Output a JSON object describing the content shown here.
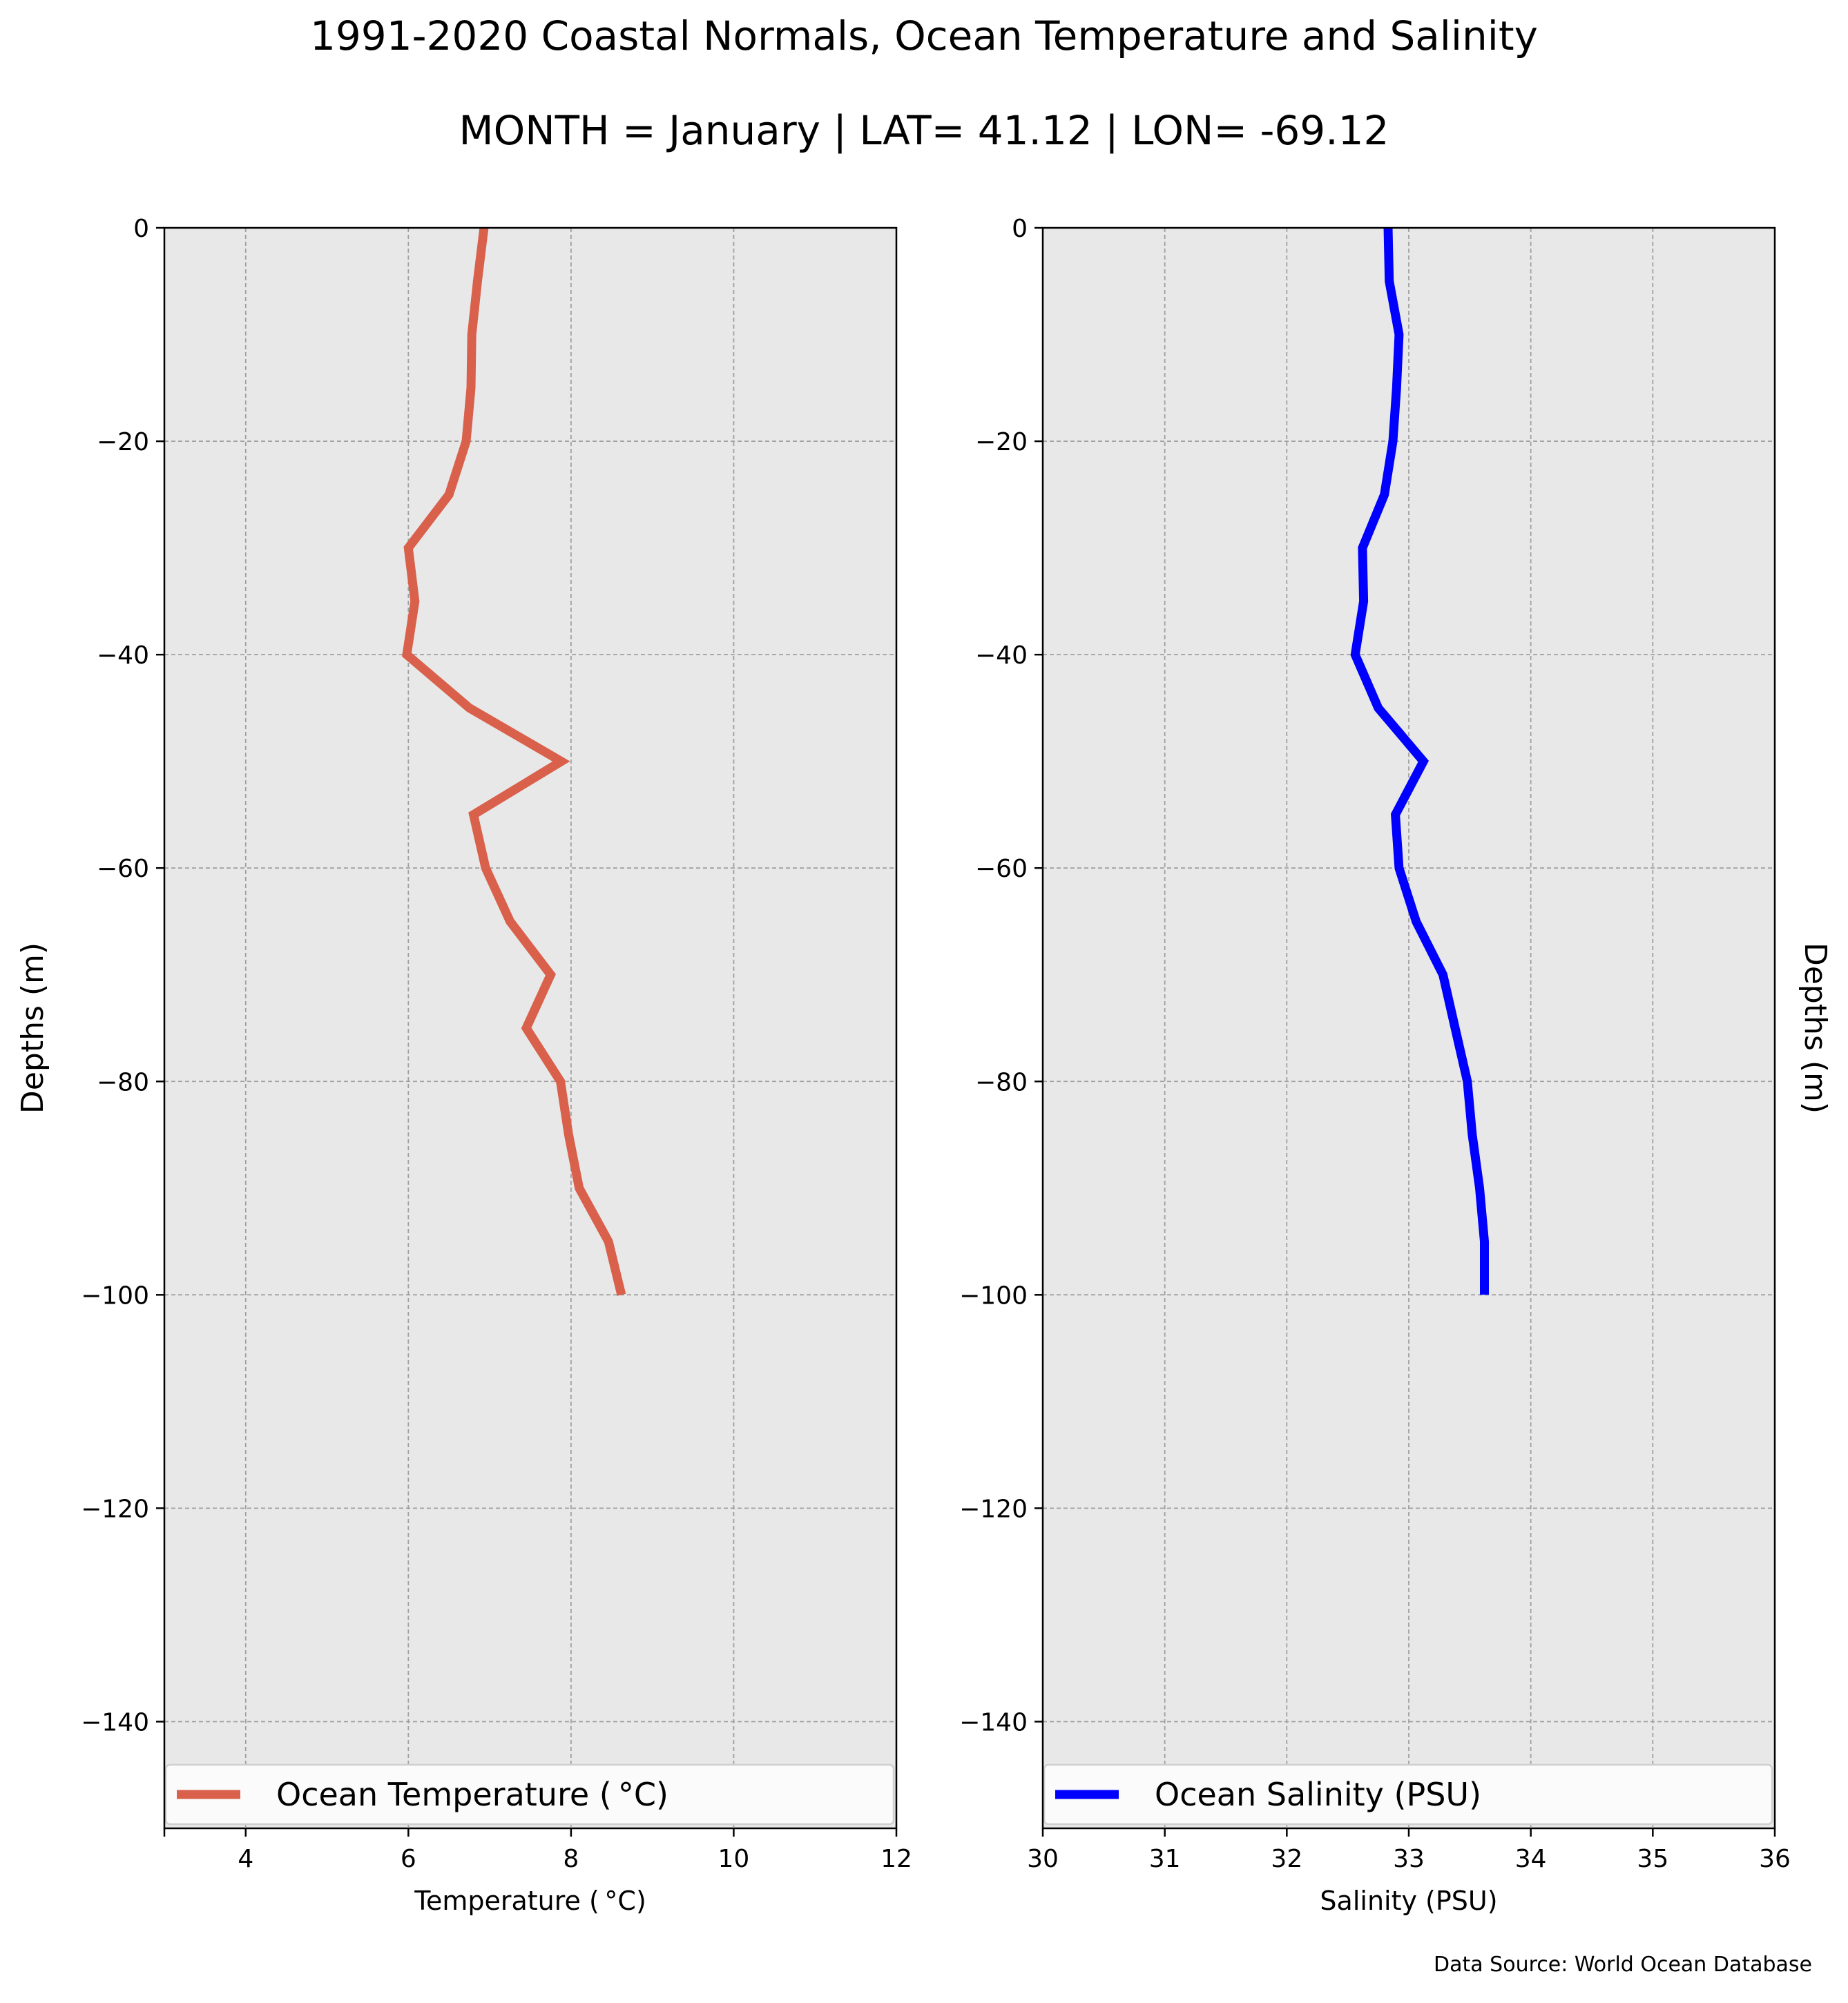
{
  "title": "1991-2020 Coastal Normals, Ocean Temperature and Salinity",
  "subtitle": "MONTH = January | LAT= 41.12 | LON= -69.12",
  "source_note": "Data Source: World Ocean Database",
  "colors": {
    "temperature_line": "#d9604b",
    "salinity_line": "#0000ff",
    "plot_background": "#e8e8e8",
    "grid": "#a0a0a0"
  },
  "chart_data": [
    {
      "type": "line",
      "orientation": "profile",
      "xlabel": "Temperature ($^\\circ$C)",
      "xlabel_display": "Temperature ( °C)",
      "ylabel": "Depths (m)",
      "xlim": [
        3,
        12
      ],
      "ylim": [
        -150,
        0
      ],
      "x_ticks": [
        4,
        6,
        8,
        10,
        12
      ],
      "y_ticks": [
        0,
        -20,
        -40,
        -60,
        -80,
        -100,
        -120,
        -140
      ],
      "grid": true,
      "legend_placement": "lower-center",
      "series": [
        {
          "name": "Ocean Temperature ( °C)",
          "color": "#d9604b",
          "depth": [
            0,
            -5,
            -10,
            -15,
            -20,
            -25,
            -30,
            -35,
            -40,
            -45,
            -50,
            -55,
            -60,
            -65,
            -70,
            -75,
            -80,
            -85,
            -90,
            -95,
            -100
          ],
          "values": [
            6.93,
            6.85,
            6.78,
            6.77,
            6.71,
            6.5,
            6.0,
            6.08,
            5.98,
            6.75,
            7.88,
            6.8,
            6.95,
            7.25,
            7.75,
            7.45,
            7.87,
            7.97,
            8.1,
            8.46,
            8.62
          ]
        }
      ]
    },
    {
      "type": "line",
      "orientation": "profile",
      "xlabel": "Salinity (PSU)",
      "ylabel": "Depths (m)",
      "xlim": [
        30,
        36
      ],
      "ylim": [
        -150,
        0
      ],
      "x_ticks": [
        30,
        31,
        32,
        33,
        34,
        35,
        36
      ],
      "y_ticks": [
        0,
        -20,
        -40,
        -60,
        -80,
        -100,
        -120,
        -140
      ],
      "grid": true,
      "legend_placement": "lower-center",
      "ylabel_side": "right",
      "series": [
        {
          "name": "Ocean Salinity (PSU)",
          "color": "#0000ff",
          "depth": [
            0,
            -5,
            -10,
            -15,
            -20,
            -25,
            -30,
            -35,
            -40,
            -45,
            -50,
            -55,
            -60,
            -65,
            -70,
            -75,
            -80,
            -85,
            -90,
            -95,
            -100
          ],
          "values": [
            32.83,
            32.84,
            32.92,
            32.9,
            32.87,
            32.8,
            32.62,
            32.63,
            32.56,
            32.75,
            33.12,
            32.89,
            32.92,
            33.06,
            33.28,
            33.38,
            33.48,
            33.52,
            33.58,
            33.62,
            33.62
          ]
        }
      ]
    }
  ]
}
